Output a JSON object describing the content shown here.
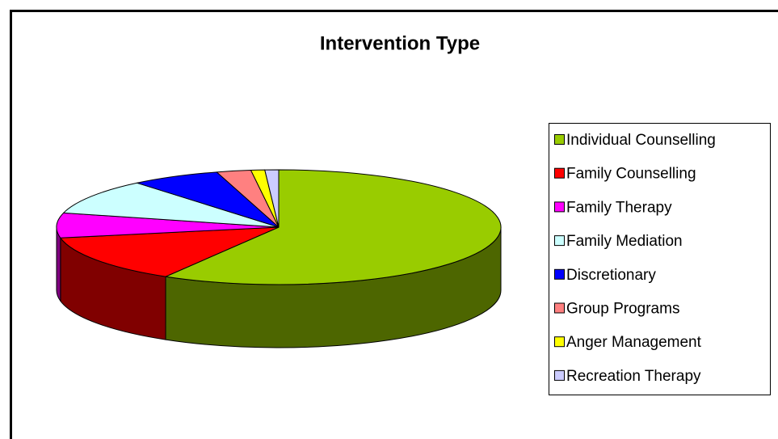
{
  "chart_data": {
    "type": "pie",
    "title": "Intervention Type",
    "categories": [
      "Individual Counselling",
      "Family Counselling",
      "Family Therapy",
      "Family Mediation",
      "Discretionary",
      "Group Programs",
      "Anger Management",
      "Recreation Therapy"
    ],
    "values": [
      58.5,
      13.5,
      7,
      10,
      6.5,
      2.5,
      1,
      1
    ],
    "colors": [
      "#99cc00",
      "#ff0000",
      "#ff00ff",
      "#ccffff",
      "#0000ff",
      "#ff8080",
      "#ffff00",
      "#ccccff"
    ],
    "legend": "right"
  }
}
